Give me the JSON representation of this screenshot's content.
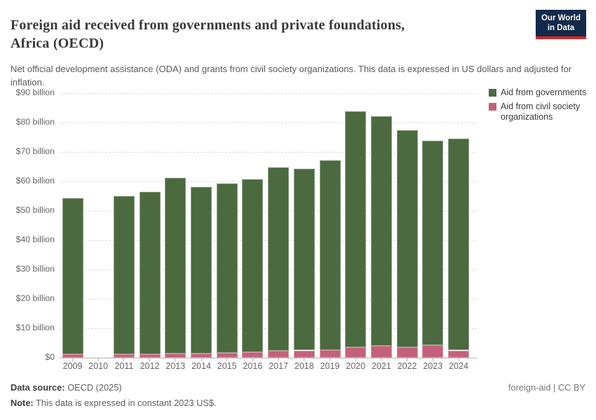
{
  "header": {
    "title_lines": [
      "Foreign aid received from governments and private foundations,",
      "Africa (OECD)"
    ],
    "subtitle": "Net official development assistance (ODA) and grants from civil society organizations. This data is expressed in US dollars and adjusted for inflation.",
    "logo": {
      "line1": "Our World",
      "line2": "in Data",
      "bg_color": "#12294b",
      "accent_color": "#cc2a28"
    }
  },
  "legend": [
    {
      "label": "Aid from governments",
      "color": "#4c6a40"
    },
    {
      "label": "Aid from civil society organizations",
      "color": "#c4617a"
    }
  ],
  "chart_data": {
    "type": "bar",
    "stacked": true,
    "title": "Foreign aid received from governments and private foundations, Africa (OECD)",
    "unit": "US$ billion (constant 2023 US$)",
    "categories": [
      "2009",
      "2010",
      "2011",
      "2012",
      "2013",
      "2014",
      "2015",
      "2016",
      "2017",
      "2018",
      "2019",
      "2020",
      "2021",
      "2022",
      "2023",
      "2024"
    ],
    "series": [
      {
        "name": "Aid from civil society organizations",
        "color": "#c4617a",
        "values": [
          1.1,
          null,
          1.1,
          1.1,
          1.5,
          1.4,
          1.6,
          1.8,
          2.3,
          2.5,
          2.6,
          3.5,
          4.0,
          3.7,
          4.2,
          2.5
        ]
      },
      {
        "name": "Aid from governments",
        "color": "#4c6a40",
        "values": [
          53.2,
          null,
          54.0,
          55.4,
          59.7,
          56.8,
          57.8,
          59.0,
          62.4,
          61.8,
          64.6,
          80.4,
          78.1,
          73.8,
          69.6,
          72.0
        ]
      }
    ],
    "totals": [
      54.3,
      null,
      55.1,
      56.5,
      61.2,
      58.2,
      59.4,
      60.8,
      64.7,
      64.3,
      67.2,
      83.9,
      82.1,
      77.5,
      73.8,
      74.5
    ],
    "ylim": [
      0,
      90
    ],
    "yticks": [
      {
        "value": 0,
        "label": "$0"
      },
      {
        "value": 10,
        "label": "$10 billion"
      },
      {
        "value": 20,
        "label": "$20 billion"
      },
      {
        "value": 30,
        "label": "$30 billion"
      },
      {
        "value": 40,
        "label": "$40 billion"
      },
      {
        "value": 50,
        "label": "$50 billion"
      },
      {
        "value": 60,
        "label": "$60 billion"
      },
      {
        "value": 70,
        "label": "$70 billion"
      },
      {
        "value": 80,
        "label": "$80 billion"
      },
      {
        "value": 90,
        "label": "$90 billion"
      }
    ],
    "grid": "horizontal-dashed",
    "legend_position": "top-right",
    "missing_categories": [
      "2010"
    ]
  },
  "footer": {
    "datasource_label": "Data source:",
    "datasource_value": "OECD (2025)",
    "note_label": "Note:",
    "note_value": "This data is expressed in constant 2023 US$.",
    "slug": "foreign-aid",
    "separator": "|",
    "license": "CC BY"
  }
}
